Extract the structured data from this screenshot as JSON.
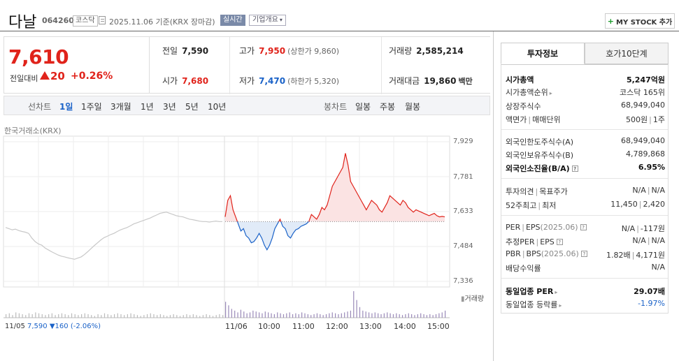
{
  "header": {
    "stock_name": "다날",
    "stock_code": "064260",
    "market": "코스닥",
    "as_of": "2025.11.06  기준(KRX 장마감)",
    "realtime_label": "실시간",
    "company_overview_label": "기업개요",
    "my_stock_label": "MY STOCK 추가"
  },
  "price": {
    "current": "7,610",
    "prev_label": "전일대비",
    "change": "20",
    "change_pct": "+0.26%"
  },
  "summary": {
    "prev_close_label": "전일",
    "prev_close": "7,590",
    "high_label": "고가",
    "high": "7,950",
    "upper_limit": "(상한가 9,860)",
    "volume_label": "거래량",
    "volume": "2,585,214",
    "open_label": "시가",
    "open": "7,680",
    "low_label": "저가",
    "low": "7,470",
    "lower_limit": "(하한가 5,320)",
    "value_label": "거래대금",
    "value": "19,860",
    "value_unit": "백만"
  },
  "period_bar": {
    "line_chart_label": "선차트",
    "periods": [
      "1일",
      "1주일",
      "3개월",
      "1년",
      "3년",
      "5년",
      "10년"
    ],
    "active_period": "1일",
    "candle_chart_label": "봉차트",
    "candles": [
      "일봉",
      "주봉",
      "월봉"
    ]
  },
  "chart": {
    "source_label": "한국거래소(KRX)",
    "y_ticks": [
      "7,929",
      "7,781",
      "7,633",
      "7,484",
      "7,336"
    ],
    "x_ticks": [
      "11/05",
      "11/06",
      "10:00",
      "11:00",
      "12:00",
      "13:00",
      "14:00",
      "15:00"
    ],
    "volume_label": "거래량",
    "prev_day": {
      "date": "11/05",
      "close": "7,590",
      "change": "▼160",
      "change_pct": "(-2.06%)"
    }
  },
  "chart_data": {
    "type": "line",
    "ylim": [
      7336,
      7929
    ],
    "reference": 7590,
    "series": [
      {
        "values": [
          7565,
          7560,
          7555,
          7558,
          7552,
          7548,
          7545,
          7540,
          7520,
          7505,
          7495,
          7490,
          7478,
          7470,
          7462,
          7455,
          7448,
          7443,
          7440,
          7436,
          7433,
          7430,
          7435,
          7440,
          7450,
          7462,
          7475,
          7488,
          7500,
          7512,
          7522,
          7528,
          7535,
          7540,
          7548,
          7555,
          7560,
          7565,
          7572,
          7580,
          7585,
          7590,
          7595,
          7600,
          7605,
          7612,
          7618,
          7625,
          7628,
          7630,
          7625,
          7620,
          7615,
          7612,
          7610,
          7605,
          7600,
          7598,
          7595,
          7592,
          7590,
          7590,
          7588,
          7590,
          7592,
          7590,
          7590
        ]
      },
      {
        "values": [
          7610,
          7680,
          7700,
          7640,
          7610,
          7580,
          7550,
          7560,
          7530,
          7520,
          7500,
          7505,
          7520,
          7540,
          7520,
          7490,
          7470,
          7490,
          7520,
          7560,
          7580,
          7600,
          7570,
          7560,
          7530,
          7520,
          7540,
          7555,
          7560,
          7570,
          7575,
          7580,
          7590,
          7620,
          7610,
          7600,
          7620,
          7650,
          7640,
          7660,
          7700,
          7740,
          7760,
          7780,
          7800,
          7820,
          7880,
          7830,
          7760,
          7740,
          7720,
          7700,
          7680,
          7660,
          7640,
          7660,
          7680,
          7670,
          7660,
          7640,
          7630,
          7650,
          7670,
          7700,
          7690,
          7680,
          7670,
          7660,
          7680,
          7670,
          7650,
          7640,
          7630,
          7640,
          7635,
          7630,
          7625,
          7620,
          7615,
          7620,
          7625,
          7615,
          7610,
          7612,
          7610
        ]
      }
    ],
    "volume_series": [
      4,
      5,
      3,
      6,
      5,
      4,
      3,
      5,
      4,
      6,
      5,
      4,
      3,
      4,
      5,
      3,
      4,
      5,
      4,
      3,
      5,
      4,
      3,
      4,
      5,
      4,
      3,
      2,
      4,
      3,
      5,
      4,
      3,
      4,
      5,
      4,
      3,
      4,
      5,
      4,
      3,
      2,
      3,
      4,
      5,
      4,
      3,
      4,
      3,
      2,
      3,
      4,
      3,
      2,
      3,
      4,
      3,
      4,
      3,
      2,
      3,
      4,
      3,
      2,
      3,
      4,
      3,
      18,
      14,
      10,
      8,
      6,
      9,
      7,
      5,
      6,
      8,
      7,
      6,
      5,
      7,
      6,
      5,
      4,
      6,
      5,
      4,
      5,
      6,
      4,
      5,
      4,
      6,
      5,
      4,
      3,
      4,
      5,
      4,
      3,
      4,
      5,
      6,
      5,
      4,
      5,
      6,
      7,
      8,
      30,
      20,
      12,
      8,
      7,
      6,
      5,
      6,
      5,
      4,
      5,
      6,
      5,
      4,
      5,
      4,
      3,
      4,
      5,
      4,
      3,
      4,
      5,
      4,
      3,
      4,
      3,
      4,
      5,
      6,
      8
    ]
  },
  "investment_panel": {
    "tab_active": "투자정보",
    "tab_inactive": "호가10단계",
    "market_cap_label": "시가총액",
    "market_cap": "5,247억원",
    "market_cap_rank_label": "시가총액순위",
    "market_cap_rank": "코스닥 165위",
    "shares_label": "상장주식수",
    "shares": "68,949,040",
    "par_label": "액면가",
    "trade_unit_label": "매매단위",
    "par": "500원",
    "trade_unit": "1주",
    "foreign_limit_label": "외국인한도주식수(A)",
    "foreign_limit": "68,949,040",
    "foreign_hold_label": "외국인보유주식수(B)",
    "foreign_hold": "4,789,868",
    "foreign_rate_label": "외국인소진율(B/A)",
    "foreign_rate": "6.95%",
    "opinion_label": "투자의견",
    "target_label": "목표주가",
    "opinion": "N/A",
    "target": "N/A",
    "w52_high_label": "52주최고",
    "w52_low_label": "최저",
    "w52_high": "11,450",
    "w52_low": "2,420",
    "per_label": "PER",
    "eps_label": "EPS",
    "eps_period": "(2025.06)",
    "per": "N/A",
    "eps": "-117원",
    "est_per_label": "추정PER",
    "est_eps_label": "EPS",
    "est_per": "N/A",
    "est_eps": "N/A",
    "pbr_label": "PBR",
    "bps_label": "BPS",
    "bps_period": "(2025.06)",
    "pbr": "1.82배",
    "bps": "4,171원",
    "div_label": "배당수익률",
    "div": "N/A",
    "sector_per_label": "동일업종 PER",
    "sector_per": "29.07배",
    "sector_chg_label": "동일업종 등락률",
    "sector_chg": "-1.97%"
  }
}
